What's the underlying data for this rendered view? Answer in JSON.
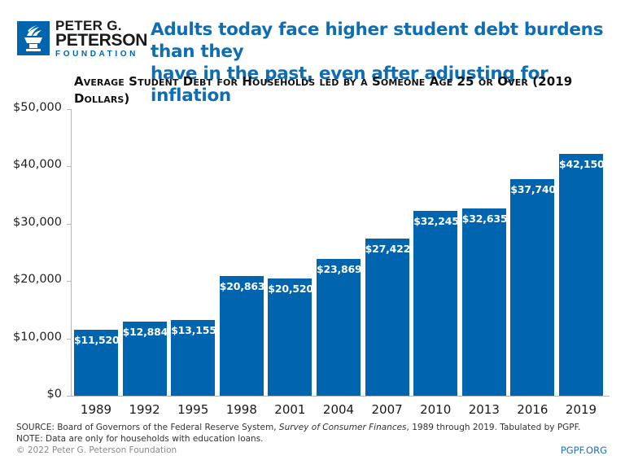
{
  "header": {
    "logo": {
      "line1": "PETER G.",
      "line2": "PETERSON",
      "line3": "FOUNDATION",
      "icon": "torch-icon",
      "color": "#0064AF"
    },
    "headline_line1": "Adults today face higher student debt burdens than they",
    "headline_line2": "have in the past, even after adjusting for inflation",
    "headline_color": "#0E6DB3"
  },
  "chart_data": {
    "type": "bar",
    "title": "Average Student Debt for Households led by a Someone Age 25 or Over (2019 Dollars)",
    "title_line1": "Average Student Debt for Households led by a Someone Age 25 or Over (2019",
    "title_line2": "Dollars)",
    "xlabel": "",
    "ylabel": "",
    "categories": [
      "1989",
      "1992",
      "1995",
      "1998",
      "2001",
      "2004",
      "2007",
      "2010",
      "2013",
      "2016",
      "2019"
    ],
    "values": [
      11520,
      12884,
      13155,
      20863,
      20520,
      23869,
      27422,
      32245,
      32635,
      37740,
      42150
    ],
    "value_labels": [
      "$11,520",
      "$12,884",
      "$13,155",
      "$20,863",
      "$20,520",
      "$23,869",
      "$27,422",
      "$32,245",
      "$32,635",
      "$37,740",
      "$42,150"
    ],
    "ylim": [
      0,
      50000
    ],
    "yticks": [
      0,
      10000,
      20000,
      30000,
      40000,
      50000
    ],
    "ytick_labels": [
      "$0",
      "$10,000",
      "$20,000",
      "$30,000",
      "$40,000",
      "$50,000"
    ],
    "grid": false,
    "legend": null,
    "bar_color": "#0064AF"
  },
  "footer": {
    "source_prefix": "SOURCE: Board of Governors of the Federal Reserve System, ",
    "source_italic": "Survey of Consumer Finances",
    "source_suffix": ", 1989 through 2019. Tabulated by PGPF.",
    "note": "NOTE: Data are only for households with education loans.",
    "copyright": "© 2022 Peter G. Peterson Foundation",
    "site": "PGPF.ORG"
  }
}
